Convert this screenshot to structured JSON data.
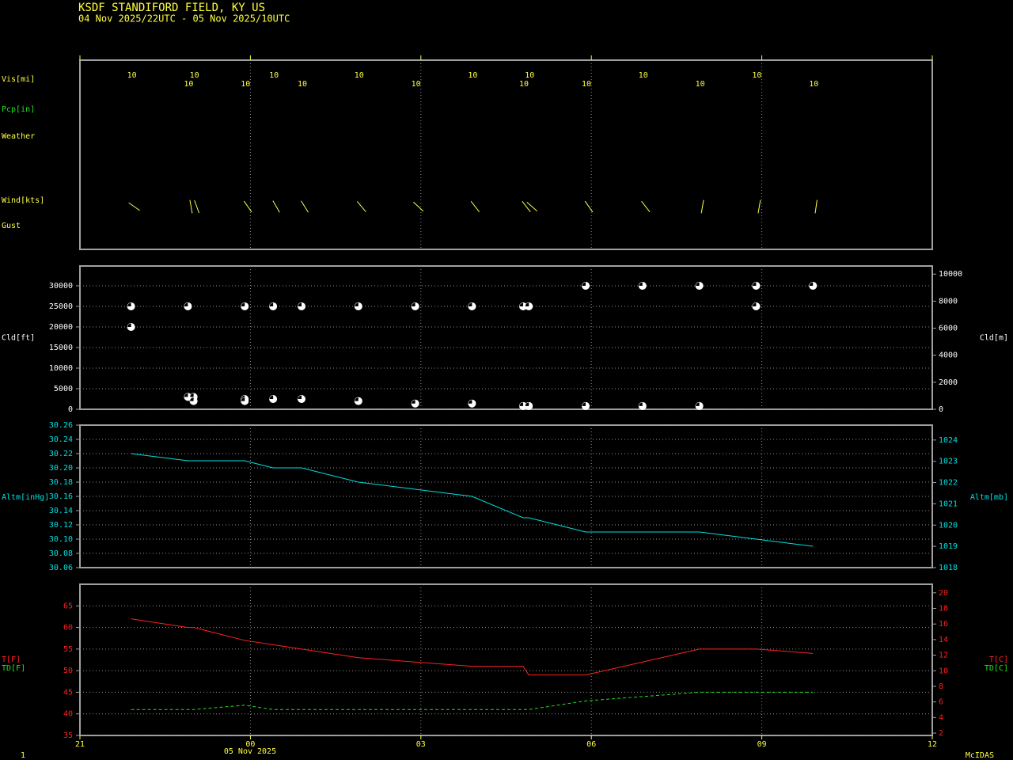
{
  "chart_data": [
    {
      "type": "station-plot",
      "title": "KSDF  STANDIFORD FIELD, KY US",
      "subtitle": "04 Nov 2025/22UTC - 05 Nov 2025/10UTC",
      "row_labels": [
        "Vis[mi]",
        "Pcp[in]",
        "Weather",
        "Wind[kts]",
        "Gust"
      ],
      "x": [
        21.9,
        22.9,
        23.0,
        23.9,
        24.4,
        24.9,
        25.9,
        26.9,
        27.9,
        28.8,
        28.9,
        29.9,
        30.9,
        31.9,
        32.9,
        33.9
      ],
      "vis": [
        10,
        10,
        10,
        10,
        10,
        10,
        10,
        10,
        10,
        10,
        10,
        10,
        10,
        10,
        10,
        10
      ],
      "wind_dir": [
        305,
        350,
        340,
        325,
        330,
        328,
        320,
        313,
        322,
        322,
        311,
        325,
        322,
        10,
        10,
        8
      ],
      "xlim": [
        21,
        36
      ],
      "xticks": [
        {
          "value": 21,
          "label": "21"
        },
        {
          "value": 24,
          "label": "00"
        },
        {
          "value": 27,
          "label": "03"
        },
        {
          "value": 30,
          "label": "06"
        },
        {
          "value": 33,
          "label": "09"
        },
        {
          "value": 36,
          "label": "12"
        }
      ]
    },
    {
      "type": "scatter",
      "ylabel": "Cld[ft]",
      "y2label": "Cld[m]",
      "color": "#ffffff",
      "x": [
        21.9,
        21.9,
        22.9,
        22.9,
        23.0,
        23.0,
        23.9,
        23.9,
        23.9,
        24.4,
        24.4,
        24.9,
        24.9,
        25.9,
        25.9,
        26.9,
        26.9,
        27.9,
        27.9,
        28.8,
        28.8,
        28.9,
        28.9,
        29.9,
        29.9,
        30.9,
        30.9,
        31.9,
        31.9,
        32.9,
        32.9,
        33.9
      ],
      "values": [
        25000,
        20000,
        25000,
        3000,
        3000,
        2000,
        25000,
        2500,
        2000,
        25000,
        2500,
        25000,
        2500,
        25000,
        2000,
        25000,
        1400,
        25000,
        1400,
        25000,
        800,
        25000,
        800,
        30000,
        800,
        30000,
        800,
        30000,
        800,
        30000,
        25000,
        30000
      ],
      "ylim": [
        0,
        34800
      ],
      "yticks": [
        0,
        5000,
        10000,
        15000,
        20000,
        25000,
        30000
      ],
      "y2lim": [
        0,
        10600
      ],
      "y2ticks": [
        0,
        2000,
        4000,
        6000,
        8000,
        10000
      ]
    },
    {
      "type": "line",
      "ylabel": "Altm[inHg]",
      "y2label": "Altm[mb]",
      "color": "#00e0e0",
      "x": [
        21.9,
        22.9,
        23.9,
        24.4,
        24.9,
        25.9,
        26.9,
        27.9,
        28.8,
        28.9,
        29.9,
        30.9,
        31.9,
        32.9,
        33.9
      ],
      "values": [
        30.22,
        30.21,
        30.21,
        30.2,
        30.2,
        30.18,
        30.17,
        30.16,
        30.13,
        30.13,
        30.11,
        30.11,
        30.11,
        30.1,
        30.09
      ],
      "ylim": [
        30.06,
        30.26
      ],
      "yticks": [
        30.06,
        30.08,
        {
          "value": 30.1,
          "label": "30.10"
        },
        30.12,
        30.14,
        30.16,
        30.18,
        {
          "value": 30.2,
          "label": "30.20"
        },
        30.22,
        30.24,
        30.26
      ],
      "y2lim": [
        1018,
        1024.7
      ],
      "y2ticks": [
        1018,
        1019,
        1020,
        1021,
        1022,
        1023,
        1024
      ]
    },
    {
      "type": "line",
      "ylabels": [
        "T[F]",
        "TD[F]"
      ],
      "y2labels": [
        "T[C]",
        "TD[C]"
      ],
      "x": [
        21.9,
        22.9,
        23.0,
        23.9,
        24.4,
        24.9,
        25.9,
        26.9,
        27.9,
        28.8,
        28.9,
        29.9,
        30.9,
        31.9,
        32.9,
        33.9
      ],
      "series": [
        {
          "color": "#ff2020",
          "values": [
            62,
            60,
            60,
            57,
            56,
            55,
            53,
            52,
            51,
            51,
            49,
            49,
            52,
            55,
            55,
            54
          ]
        },
        {
          "color": "#20e020",
          "dashed": true,
          "values": [
            41,
            41,
            41,
            42,
            41,
            41,
            41,
            41,
            41,
            41,
            41,
            43,
            44,
            45,
            45,
            45
          ]
        }
      ],
      "ylim": [
        35,
        70
      ],
      "yticks": [
        35,
        40,
        45,
        50,
        55,
        60,
        65
      ],
      "y2lim": [
        1.7,
        21.1
      ],
      "y2ticks": [
        2,
        4,
        6,
        8,
        10,
        12,
        14,
        16,
        18,
        20
      ]
    }
  ],
  "footer": {
    "page": "1",
    "date_label": "05 Nov 2025",
    "credit": "McIDAS"
  }
}
